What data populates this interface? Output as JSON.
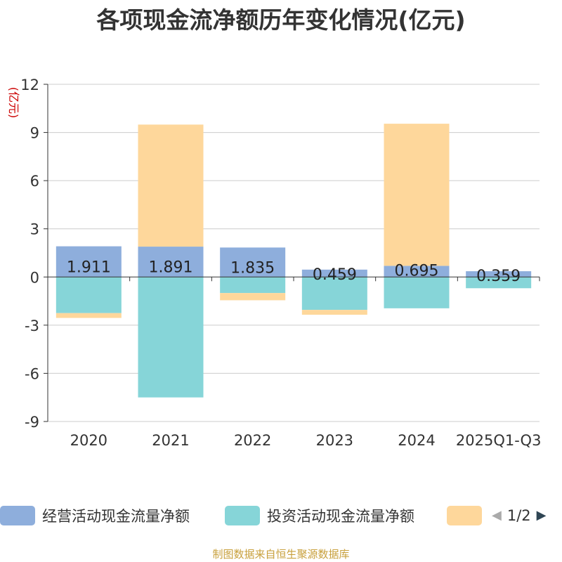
{
  "title": "各项现金流净额历年变化情况(亿元)",
  "source": "制图数据来自恒生聚源数据库",
  "colors": {
    "operating": "#8eaedc",
    "investing": "#86d5d8",
    "financing": "#fed79b",
    "grid": "#cccccc",
    "axis": "#333333",
    "ylabel": "#cc0000"
  },
  "legend": {
    "page": "1/2"
  },
  "chart_data": {
    "type": "bar",
    "stacked": true,
    "title": "各项现金流净额历年变化情况(亿元)",
    "ylabel": "(亿元)",
    "xlabel": "",
    "ylim": [
      -9,
      12
    ],
    "yticks": [
      12,
      9,
      6,
      3,
      0,
      -3,
      -6,
      -9
    ],
    "grid": true,
    "legend_position": "bottom",
    "categories": [
      "2020",
      "2021",
      "2022",
      "2023",
      "2024",
      "2025Q1-Q3"
    ],
    "series": [
      {
        "name": "经营活动现金流量净额",
        "key": "operating",
        "values": [
          1.911,
          1.891,
          1.835,
          0.459,
          0.695,
          0.359
        ],
        "labels": [
          "1.911",
          "1.891",
          "1.835",
          "0.459",
          "0.695",
          "0.359"
        ]
      },
      {
        "name": "投资活动现金流量净额",
        "key": "investing",
        "values": [
          -2.25,
          -7.5,
          -1.0,
          -2.05,
          -1.95,
          -0.7
        ]
      },
      {
        "name": "",
        "key": "financing",
        "values": [
          -0.3,
          7.6,
          -0.45,
          -0.3,
          8.85,
          0.0
        ]
      }
    ]
  }
}
